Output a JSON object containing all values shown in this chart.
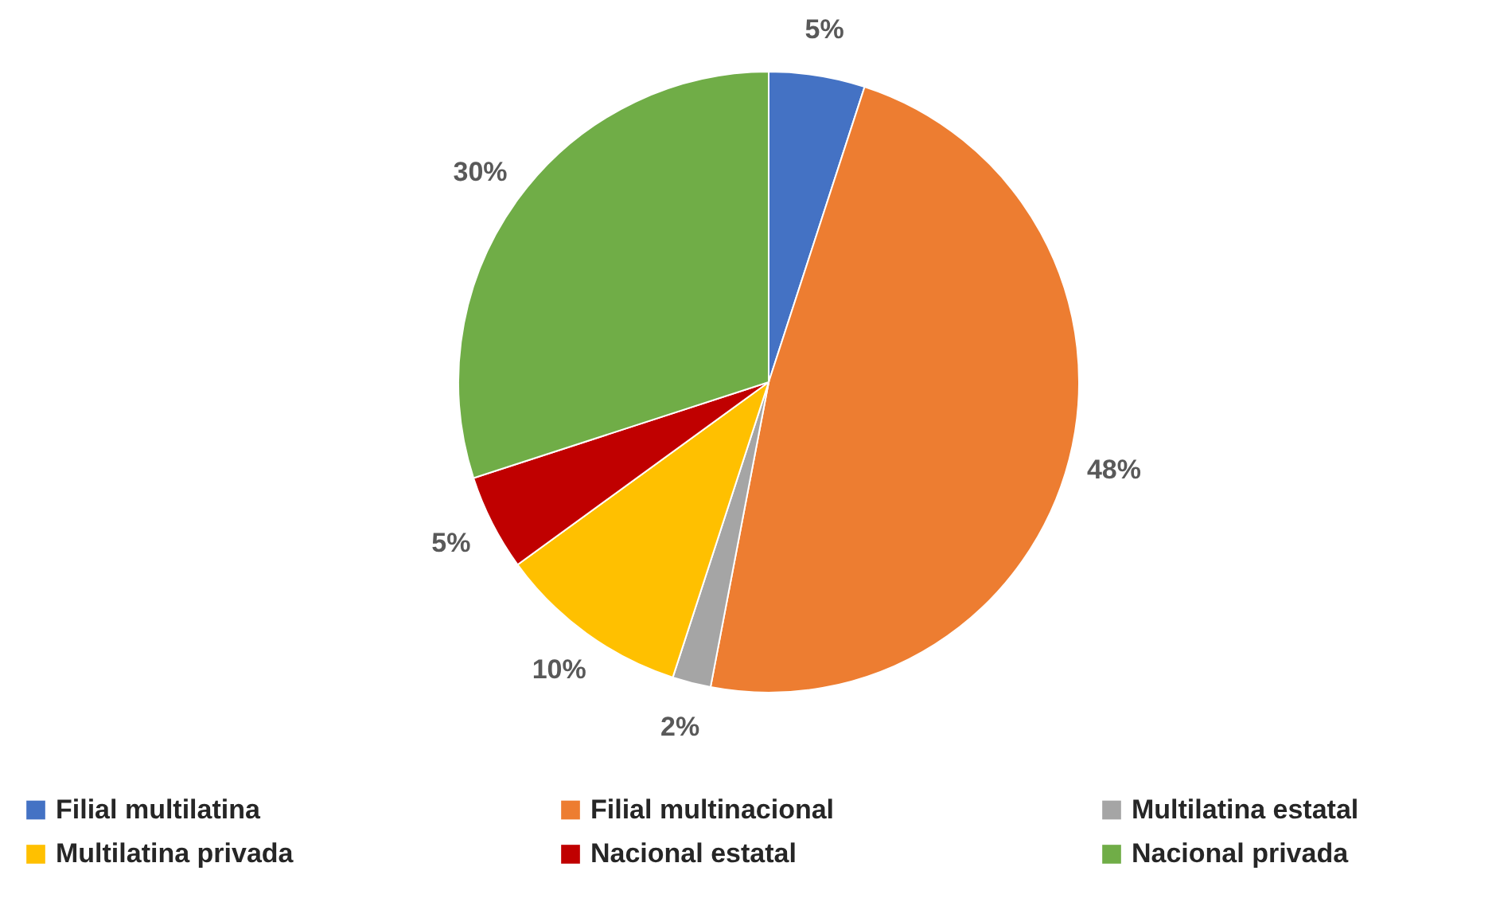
{
  "chart_data": {
    "type": "pie",
    "categories": [
      "Filial multilatina",
      "Filial multinacional",
      "Multilatina estatal",
      "Multilatina privada",
      "Nacional estatal",
      "Nacional privada"
    ],
    "values": [
      5,
      48,
      2,
      10,
      5,
      30
    ],
    "colors": [
      "#4472c4",
      "#ed7d31",
      "#a5a5a5",
      "#ffc000",
      "#c00000",
      "#70ad47"
    ],
    "value_labels": [
      "5%",
      "48%",
      "2%",
      "10%",
      "5%",
      "30%"
    ],
    "legend": "bottom"
  }
}
